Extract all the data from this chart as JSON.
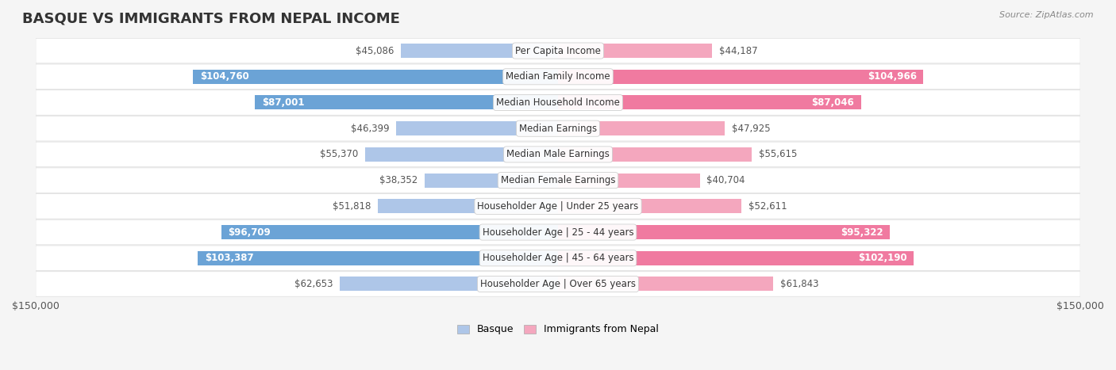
{
  "title": "BASQUE VS IMMIGRANTS FROM NEPAL INCOME",
  "source": "Source: ZipAtlas.com",
  "categories": [
    "Per Capita Income",
    "Median Family Income",
    "Median Household Income",
    "Median Earnings",
    "Median Male Earnings",
    "Median Female Earnings",
    "Householder Age | Under 25 years",
    "Householder Age | 25 - 44 years",
    "Householder Age | 45 - 64 years",
    "Householder Age | Over 65 years"
  ],
  "basque_values": [
    45086,
    104760,
    87001,
    46399,
    55370,
    38352,
    51818,
    96709,
    103387,
    62653
  ],
  "nepal_values": [
    44187,
    104966,
    87046,
    47925,
    55615,
    40704,
    52611,
    95322,
    102190,
    61843
  ],
  "basque_labels": [
    "$45,086",
    "$104,760",
    "$87,001",
    "$46,399",
    "$55,370",
    "$38,352",
    "$51,818",
    "$96,709",
    "$103,387",
    "$62,653"
  ],
  "nepal_labels": [
    "$44,187",
    "$104,966",
    "$87,046",
    "$47,925",
    "$55,615",
    "$40,704",
    "$52,611",
    "$95,322",
    "$102,190",
    "$61,843"
  ],
  "basque_color_light": "#aec6e8",
  "basque_color_dark": "#6ba3d6",
  "nepal_color_light": "#f4a7be",
  "nepal_color_dark": "#f07aa0",
  "max_value": 150000,
  "x_label_left": "$150,000",
  "x_label_right": "$150,000",
  "legend_basque": "Basque",
  "legend_nepal": "Immigrants from Nepal",
  "bg_color": "#f5f5f5",
  "row_bg_color": "#ffffff",
  "title_fontsize": 13,
  "label_fontsize": 8.5,
  "category_fontsize": 8.5
}
